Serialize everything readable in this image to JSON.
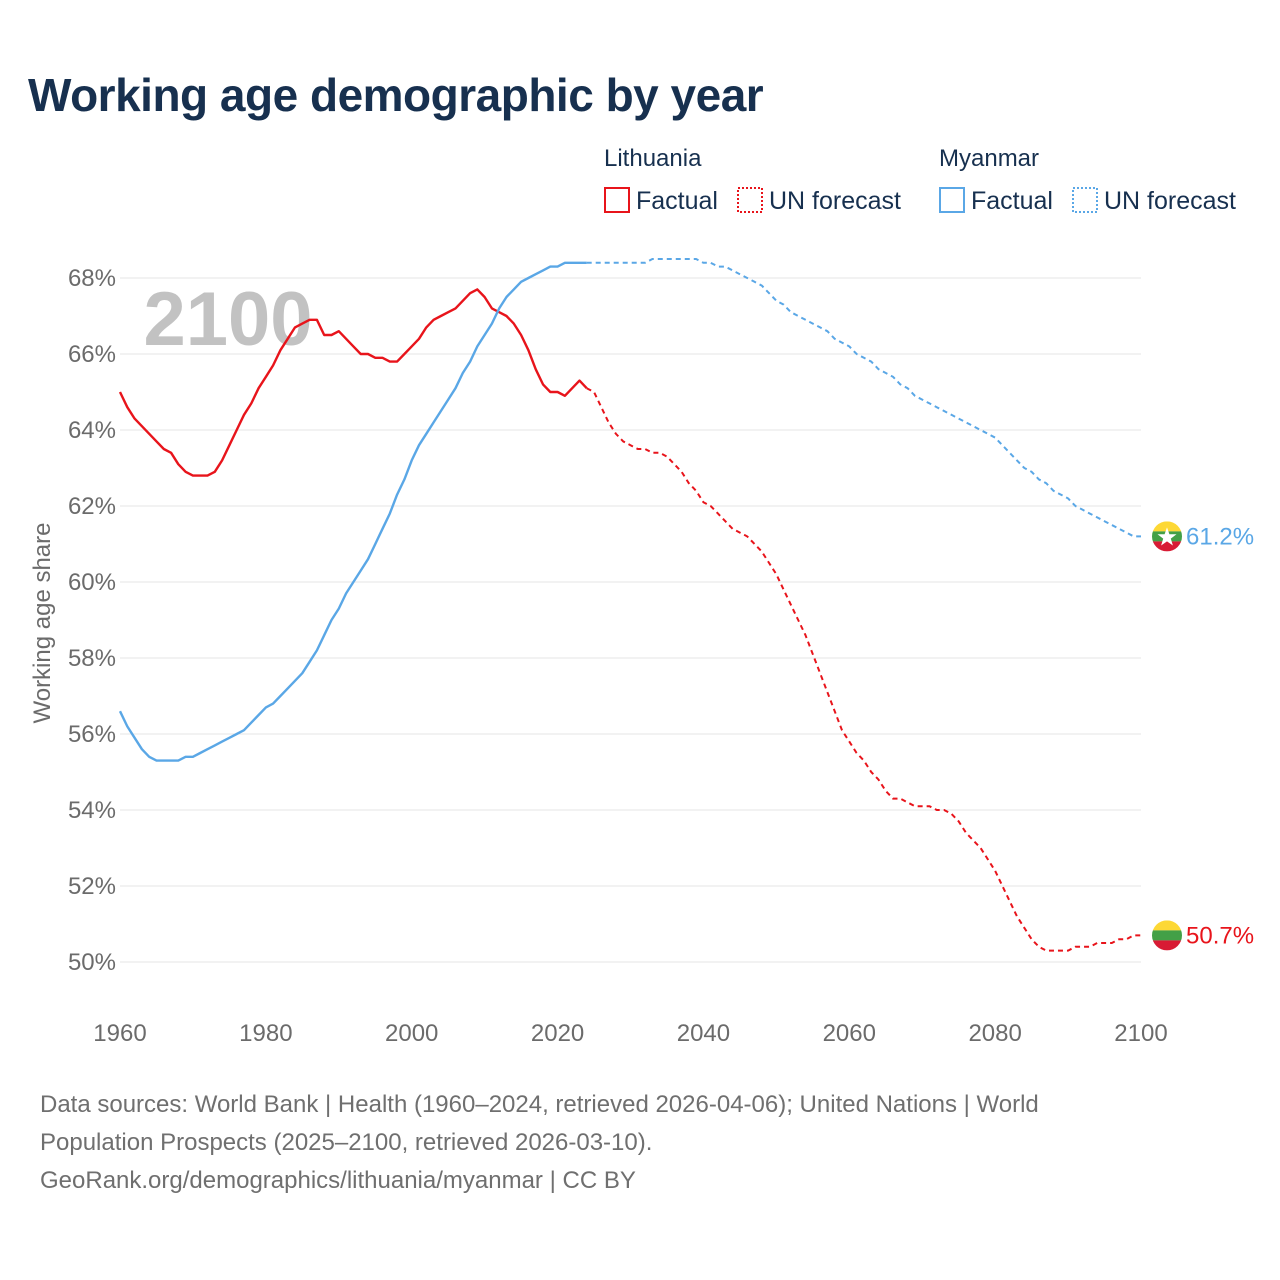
{
  "title": "Working age demographic by year",
  "source_lines": [
    "Data sources: World Bank | Health (1960–2024, retrieved 2026-04-06); United Nations | World",
    "Population Prospects (2025–2100, retrieved 2026-03-10).",
    "GeoRank.org/demographics/lithuania/myanmar | CC BY"
  ],
  "year_watermark": "2100",
  "colors": {
    "lithuania": "#e8141b",
    "myanmar": "#5aa7e6",
    "myanmar_forecast": "#5aa7e6",
    "grid": "#e6e6e6",
    "text": "#17304f"
  },
  "legend": {
    "groups": [
      {
        "country": "Lithuania",
        "factual_label": "Factual",
        "forecast_label": "UN forecast",
        "color_key": "lithuania"
      },
      {
        "country": "Myanmar",
        "factual_label": "Factual",
        "forecast_label": "UN forecast",
        "color_key": "myanmar"
      }
    ]
  },
  "chart_data": {
    "type": "line",
    "title": "Working age demographic by year",
    "xlabel": "",
    "ylabel": "Working age share",
    "xlim": [
      1960,
      2100
    ],
    "ylim": [
      49,
      69
    ],
    "x_ticks": [
      1960,
      1980,
      2000,
      2020,
      2040,
      2060,
      2080,
      2100
    ],
    "y_ticks": [
      50,
      52,
      54,
      56,
      58,
      60,
      62,
      64,
      66,
      68
    ],
    "y_tick_suffix": "%",
    "factual_end_year": 2024,
    "series": [
      {
        "name": "Lithuania",
        "end_label": "50.7%",
        "points": [
          [
            1960,
            65.0
          ],
          [
            1961,
            64.6
          ],
          [
            1962,
            64.3
          ],
          [
            1963,
            64.1
          ],
          [
            1964,
            63.9
          ],
          [
            1965,
            63.7
          ],
          [
            1966,
            63.5
          ],
          [
            1967,
            63.4
          ],
          [
            1968,
            63.1
          ],
          [
            1969,
            62.9
          ],
          [
            1970,
            62.8
          ],
          [
            1971,
            62.8
          ],
          [
            1972,
            62.8
          ],
          [
            1973,
            62.9
          ],
          [
            1974,
            63.2
          ],
          [
            1975,
            63.6
          ],
          [
            1976,
            64.0
          ],
          [
            1977,
            64.4
          ],
          [
            1978,
            64.7
          ],
          [
            1979,
            65.1
          ],
          [
            1980,
            65.4
          ],
          [
            1981,
            65.7
          ],
          [
            1982,
            66.1
          ],
          [
            1983,
            66.4
          ],
          [
            1984,
            66.7
          ],
          [
            1985,
            66.8
          ],
          [
            1986,
            66.9
          ],
          [
            1987,
            66.9
          ],
          [
            1988,
            66.5
          ],
          [
            1989,
            66.5
          ],
          [
            1990,
            66.6
          ],
          [
            1991,
            66.4
          ],
          [
            1992,
            66.2
          ],
          [
            1993,
            66.0
          ],
          [
            1994,
            66.0
          ],
          [
            1995,
            65.9
          ],
          [
            1996,
            65.9
          ],
          [
            1997,
            65.8
          ],
          [
            1998,
            65.8
          ],
          [
            1999,
            66.0
          ],
          [
            2000,
            66.2
          ],
          [
            2001,
            66.4
          ],
          [
            2002,
            66.7
          ],
          [
            2003,
            66.9
          ],
          [
            2004,
            67.0
          ],
          [
            2005,
            67.1
          ],
          [
            2006,
            67.2
          ],
          [
            2007,
            67.4
          ],
          [
            2008,
            67.6
          ],
          [
            2009,
            67.7
          ],
          [
            2010,
            67.5
          ],
          [
            2011,
            67.2
          ],
          [
            2012,
            67.1
          ],
          [
            2013,
            67.0
          ],
          [
            2014,
            66.8
          ],
          [
            2015,
            66.5
          ],
          [
            2016,
            66.1
          ],
          [
            2017,
            65.6
          ],
          [
            2018,
            65.2
          ],
          [
            2019,
            65.0
          ],
          [
            2020,
            65.0
          ],
          [
            2021,
            64.9
          ],
          [
            2022,
            65.1
          ],
          [
            2023,
            65.3
          ],
          [
            2024,
            65.1
          ],
          [
            2025,
            65.0
          ],
          [
            2026,
            64.6
          ],
          [
            2027,
            64.2
          ],
          [
            2028,
            63.9
          ],
          [
            2029,
            63.7
          ],
          [
            2030,
            63.6
          ],
          [
            2031,
            63.5
          ],
          [
            2032,
            63.5
          ],
          [
            2033,
            63.4
          ],
          [
            2034,
            63.4
          ],
          [
            2035,
            63.3
          ],
          [
            2036,
            63.1
          ],
          [
            2037,
            62.9
          ],
          [
            2038,
            62.6
          ],
          [
            2039,
            62.4
          ],
          [
            2040,
            62.1
          ],
          [
            2041,
            62.0
          ],
          [
            2042,
            61.8
          ],
          [
            2043,
            61.6
          ],
          [
            2044,
            61.4
          ],
          [
            2045,
            61.3
          ],
          [
            2046,
            61.2
          ],
          [
            2047,
            61.0
          ],
          [
            2048,
            60.8
          ],
          [
            2049,
            60.5
          ],
          [
            2050,
            60.2
          ],
          [
            2051,
            59.8
          ],
          [
            2052,
            59.4
          ],
          [
            2053,
            59.0
          ],
          [
            2054,
            58.6
          ],
          [
            2055,
            58.1
          ],
          [
            2056,
            57.6
          ],
          [
            2057,
            57.1
          ],
          [
            2058,
            56.6
          ],
          [
            2059,
            56.1
          ],
          [
            2060,
            55.8
          ],
          [
            2061,
            55.5
          ],
          [
            2062,
            55.3
          ],
          [
            2063,
            55.0
          ],
          [
            2064,
            54.8
          ],
          [
            2065,
            54.5
          ],
          [
            2066,
            54.3
          ],
          [
            2067,
            54.3
          ],
          [
            2068,
            54.2
          ],
          [
            2069,
            54.1
          ],
          [
            2070,
            54.1
          ],
          [
            2071,
            54.1
          ],
          [
            2072,
            54.0
          ],
          [
            2073,
            54.0
          ],
          [
            2074,
            53.9
          ],
          [
            2075,
            53.7
          ],
          [
            2076,
            53.4
          ],
          [
            2077,
            53.2
          ],
          [
            2078,
            53.0
          ],
          [
            2079,
            52.7
          ],
          [
            2080,
            52.4
          ],
          [
            2081,
            52.0
          ],
          [
            2082,
            51.6
          ],
          [
            2083,
            51.2
          ],
          [
            2084,
            50.9
          ],
          [
            2085,
            50.6
          ],
          [
            2086,
            50.4
          ],
          [
            2087,
            50.3
          ],
          [
            2088,
            50.3
          ],
          [
            2089,
            50.3
          ],
          [
            2090,
            50.3
          ],
          [
            2091,
            50.4
          ],
          [
            2092,
            50.4
          ],
          [
            2093,
            50.4
          ],
          [
            2094,
            50.5
          ],
          [
            2095,
            50.5
          ],
          [
            2096,
            50.5
          ],
          [
            2097,
            50.6
          ],
          [
            2098,
            50.6
          ],
          [
            2099,
            50.7
          ],
          [
            2100,
            50.7
          ]
        ]
      },
      {
        "name": "Myanmar",
        "end_label": "61.2%",
        "points": [
          [
            1960,
            56.6
          ],
          [
            1961,
            56.2
          ],
          [
            1962,
            55.9
          ],
          [
            1963,
            55.6
          ],
          [
            1964,
            55.4
          ],
          [
            1965,
            55.3
          ],
          [
            1966,
            55.3
          ],
          [
            1967,
            55.3
          ],
          [
            1968,
            55.3
          ],
          [
            1969,
            55.4
          ],
          [
            1970,
            55.4
          ],
          [
            1971,
            55.5
          ],
          [
            1972,
            55.6
          ],
          [
            1973,
            55.7
          ],
          [
            1974,
            55.8
          ],
          [
            1975,
            55.9
          ],
          [
            1976,
            56.0
          ],
          [
            1977,
            56.1
          ],
          [
            1978,
            56.3
          ],
          [
            1979,
            56.5
          ],
          [
            1980,
            56.7
          ],
          [
            1981,
            56.8
          ],
          [
            1982,
            57.0
          ],
          [
            1983,
            57.2
          ],
          [
            1984,
            57.4
          ],
          [
            1985,
            57.6
          ],
          [
            1986,
            57.9
          ],
          [
            1987,
            58.2
          ],
          [
            1988,
            58.6
          ],
          [
            1989,
            59.0
          ],
          [
            1990,
            59.3
          ],
          [
            1991,
            59.7
          ],
          [
            1992,
            60.0
          ],
          [
            1993,
            60.3
          ],
          [
            1994,
            60.6
          ],
          [
            1995,
            61.0
          ],
          [
            1996,
            61.4
          ],
          [
            1997,
            61.8
          ],
          [
            1998,
            62.3
          ],
          [
            1999,
            62.7
          ],
          [
            2000,
            63.2
          ],
          [
            2001,
            63.6
          ],
          [
            2002,
            63.9
          ],
          [
            2003,
            64.2
          ],
          [
            2004,
            64.5
          ],
          [
            2005,
            64.8
          ],
          [
            2006,
            65.1
          ],
          [
            2007,
            65.5
          ],
          [
            2008,
            65.8
          ],
          [
            2009,
            66.2
          ],
          [
            2010,
            66.5
          ],
          [
            2011,
            66.8
          ],
          [
            2012,
            67.2
          ],
          [
            2013,
            67.5
          ],
          [
            2014,
            67.7
          ],
          [
            2015,
            67.9
          ],
          [
            2016,
            68.0
          ],
          [
            2017,
            68.1
          ],
          [
            2018,
            68.2
          ],
          [
            2019,
            68.3
          ],
          [
            2020,
            68.3
          ],
          [
            2021,
            68.4
          ],
          [
            2022,
            68.4
          ],
          [
            2023,
            68.4
          ],
          [
            2024,
            68.4
          ],
          [
            2025,
            68.4
          ],
          [
            2026,
            68.4
          ],
          [
            2027,
            68.4
          ],
          [
            2028,
            68.4
          ],
          [
            2029,
            68.4
          ],
          [
            2030,
            68.4
          ],
          [
            2031,
            68.4
          ],
          [
            2032,
            68.4
          ],
          [
            2033,
            68.5
          ],
          [
            2034,
            68.5
          ],
          [
            2035,
            68.5
          ],
          [
            2036,
            68.5
          ],
          [
            2037,
            68.5
          ],
          [
            2038,
            68.5
          ],
          [
            2039,
            68.5
          ],
          [
            2040,
            68.4
          ],
          [
            2041,
            68.4
          ],
          [
            2042,
            68.3
          ],
          [
            2043,
            68.3
          ],
          [
            2044,
            68.2
          ],
          [
            2045,
            68.1
          ],
          [
            2046,
            68.0
          ],
          [
            2047,
            67.9
          ],
          [
            2048,
            67.8
          ],
          [
            2049,
            67.6
          ],
          [
            2050,
            67.4
          ],
          [
            2051,
            67.3
          ],
          [
            2052,
            67.1
          ],
          [
            2053,
            67.0
          ],
          [
            2054,
            66.9
          ],
          [
            2055,
            66.8
          ],
          [
            2056,
            66.7
          ],
          [
            2057,
            66.6
          ],
          [
            2058,
            66.4
          ],
          [
            2059,
            66.3
          ],
          [
            2060,
            66.2
          ],
          [
            2061,
            66.0
          ],
          [
            2062,
            65.9
          ],
          [
            2063,
            65.8
          ],
          [
            2064,
            65.6
          ],
          [
            2065,
            65.5
          ],
          [
            2066,
            65.4
          ],
          [
            2067,
            65.2
          ],
          [
            2068,
            65.1
          ],
          [
            2069,
            64.9
          ],
          [
            2070,
            64.8
          ],
          [
            2071,
            64.7
          ],
          [
            2072,
            64.6
          ],
          [
            2073,
            64.5
          ],
          [
            2074,
            64.4
          ],
          [
            2075,
            64.3
          ],
          [
            2076,
            64.2
          ],
          [
            2077,
            64.1
          ],
          [
            2078,
            64.0
          ],
          [
            2079,
            63.9
          ],
          [
            2080,
            63.8
          ],
          [
            2081,
            63.6
          ],
          [
            2082,
            63.4
          ],
          [
            2083,
            63.2
          ],
          [
            2084,
            63.0
          ],
          [
            2085,
            62.9
          ],
          [
            2086,
            62.7
          ],
          [
            2087,
            62.6
          ],
          [
            2088,
            62.4
          ],
          [
            2089,
            62.3
          ],
          [
            2090,
            62.2
          ],
          [
            2091,
            62.0
          ],
          [
            2092,
            61.9
          ],
          [
            2093,
            61.8
          ],
          [
            2094,
            61.7
          ],
          [
            2095,
            61.6
          ],
          [
            2096,
            61.5
          ],
          [
            2097,
            61.4
          ],
          [
            2098,
            61.3
          ],
          [
            2099,
            61.2
          ],
          [
            2100,
            61.2
          ]
        ]
      }
    ]
  }
}
